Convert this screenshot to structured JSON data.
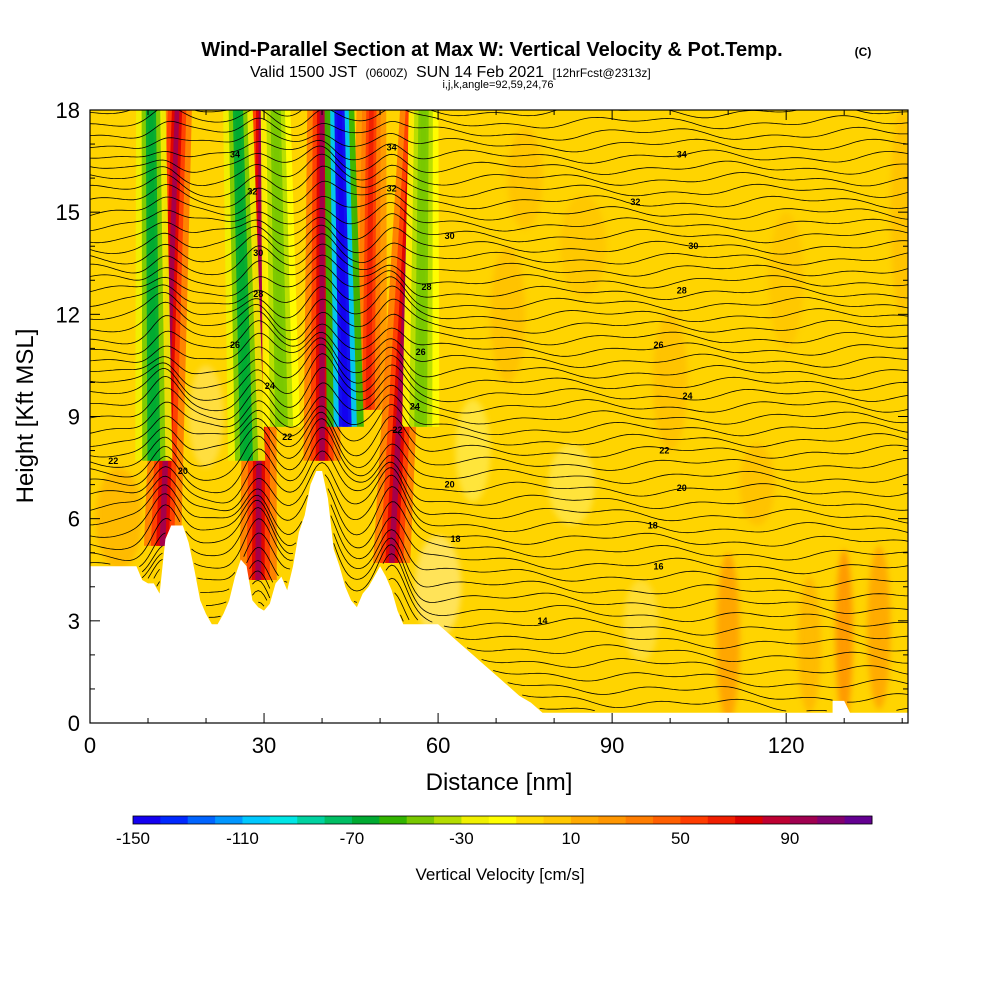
{
  "header": {
    "title_main": "Wind-Parallel Section at Max W: Vertical Velocity & Pot.Temp.",
    "title_tag": "(C)",
    "valid_prefix": "Valid 1500 JST",
    "valid_utc": "(0600Z)",
    "valid_date": "SUN 14 Feb 2021",
    "forecast": "[12hrFcst@2313z]",
    "grid_info": "i,j,k,angle=92,59,24,76"
  },
  "colors": {
    "background_field": "#ffd400",
    "terrain": "#ffffff",
    "contour_line": "#000000"
  },
  "chart_data": {
    "type": "heatmap",
    "xlabel": "Distance [nm]",
    "ylabel": "Height [Kft MSL]",
    "xlim": [
      0,
      141
    ],
    "ylim": [
      0,
      18
    ],
    "x_ticks": [
      0,
      30,
      60,
      90,
      120
    ],
    "y_ticks": [
      0,
      3,
      6,
      9,
      12,
      15,
      18
    ],
    "x_ticks_minor": [
      10,
      20,
      40,
      50,
      70,
      80,
      100,
      110,
      130,
      140
    ],
    "y_ticks_minor": [
      1,
      2,
      4,
      5,
      7,
      8,
      10,
      11,
      13,
      14,
      16,
      17
    ],
    "field": {
      "name": "Vertical Velocity",
      "units": "cm/s",
      "updraft_bands": [
        {
          "x_base": 12.5,
          "x_top": 15,
          "z_base": 5.5,
          "velocity": 90
        },
        {
          "x_base": 29,
          "x_top": 29.5,
          "z_base": 4.5,
          "velocity": 90
        },
        {
          "x_base": 40,
          "x_top": 40,
          "z_base": 8,
          "velocity": 90
        },
        {
          "x_base": 48,
          "x_top": 48.5,
          "z_base": 9.5,
          "velocity": 60
        },
        {
          "x_base": 52,
          "x_top": 56,
          "z_base": 5,
          "velocity": 90
        }
      ],
      "downdraft_bands": [
        {
          "x_base": 11,
          "x_top": 10.5,
          "z_base": 8,
          "velocity": -70
        },
        {
          "x_base": 27,
          "x_top": 25.5,
          "z_base": 8,
          "velocity": -70
        },
        {
          "x_base": 33,
          "x_top": 32,
          "z_base": 9,
          "velocity": -50
        },
        {
          "x_base": 44,
          "x_top": 43,
          "z_base": 9,
          "velocity": -150
        },
        {
          "x_base": 57,
          "x_top": 57.5,
          "z_base": 9,
          "velocity": -50
        }
      ]
    },
    "contours": {
      "name": "Potential Temperature",
      "units": "C",
      "start": 9,
      "interval": 0.5,
      "count": 54
    },
    "contour_labels": [
      {
        "text": "34",
        "x": 25,
        "z": 16.7
      },
      {
        "text": "32",
        "x": 28,
        "z": 15.6
      },
      {
        "text": "30",
        "x": 29,
        "z": 13.8
      },
      {
        "text": "28",
        "x": 29,
        "z": 12.6
      },
      {
        "text": "26",
        "x": 25,
        "z": 11.1
      },
      {
        "text": "24",
        "x": 31,
        "z": 9.9
      },
      {
        "text": "22",
        "x": 34,
        "z": 8.4
      },
      {
        "text": "22",
        "x": 4,
        "z": 7.7
      },
      {
        "text": "20",
        "x": 16,
        "z": 7.4
      },
      {
        "text": "34",
        "x": 52,
        "z": 16.9
      },
      {
        "text": "32",
        "x": 52,
        "z": 15.7
      },
      {
        "text": "30",
        "x": 62,
        "z": 14.3
      },
      {
        "text": "28",
        "x": 58,
        "z": 12.8
      },
      {
        "text": "26",
        "x": 57,
        "z": 10.9
      },
      {
        "text": "24",
        "x": 56,
        "z": 9.3
      },
      {
        "text": "22",
        "x": 53,
        "z": 8.6
      },
      {
        "text": "20",
        "x": 62,
        "z": 7.0
      },
      {
        "text": "18",
        "x": 63,
        "z": 5.4
      },
      {
        "text": "14",
        "x": 78,
        "z": 3.0
      },
      {
        "text": "34",
        "x": 102,
        "z": 16.7
      },
      {
        "text": "32",
        "x": 94,
        "z": 15.3
      },
      {
        "text": "30",
        "x": 104,
        "z": 14.0
      },
      {
        "text": "28",
        "x": 102,
        "z": 12.7
      },
      {
        "text": "26",
        "x": 98,
        "z": 11.1
      },
      {
        "text": "24",
        "x": 103,
        "z": 9.6
      },
      {
        "text": "22",
        "x": 99,
        "z": 8.0
      },
      {
        "text": "20",
        "x": 102,
        "z": 6.9
      },
      {
        "text": "18",
        "x": 97,
        "z": 5.8
      },
      {
        "text": "16",
        "x": 98,
        "z": 4.6
      }
    ],
    "terrain": [
      [
        0,
        4.6
      ],
      [
        8,
        4.6
      ],
      [
        9,
        4.2
      ],
      [
        10,
        4.1
      ],
      [
        11,
        4.1
      ],
      [
        12,
        3.8
      ],
      [
        13,
        5.4
      ],
      [
        14,
        5.8
      ],
      [
        16,
        5.8
      ],
      [
        17,
        5.3
      ],
      [
        18,
        4.5
      ],
      [
        19,
        3.6
      ],
      [
        20,
        3.2
      ],
      [
        21,
        2.9
      ],
      [
        22,
        2.9
      ],
      [
        23,
        3.2
      ],
      [
        24,
        3.6
      ],
      [
        25,
        4.3
      ],
      [
        26,
        4.8
      ],
      [
        27,
        4.6
      ],
      [
        28,
        3.6
      ],
      [
        29,
        3.4
      ],
      [
        30,
        3.3
      ],
      [
        31,
        3.5
      ],
      [
        32,
        4.1
      ],
      [
        33,
        4.3
      ],
      [
        34,
        3.9
      ],
      [
        35,
        4.6
      ],
      [
        36,
        5.6
      ],
      [
        37,
        6.1
      ],
      [
        38,
        7.0
      ],
      [
        39,
        7.4
      ],
      [
        40,
        7.4
      ],
      [
        41,
        6.6
      ],
      [
        42,
        5.1
      ],
      [
        43,
        4.6
      ],
      [
        44,
        4.0
      ],
      [
        45,
        3.6
      ],
      [
        46,
        3.4
      ],
      [
        47,
        3.8
      ],
      [
        48,
        4.0
      ],
      [
        49,
        4.3
      ],
      [
        50,
        4.6
      ],
      [
        51,
        4.3
      ],
      [
        52,
        3.9
      ],
      [
        53,
        3.3
      ],
      [
        54,
        2.9
      ],
      [
        60,
        2.9
      ],
      [
        62,
        2.6
      ],
      [
        64,
        2.3
      ],
      [
        66,
        2.0
      ],
      [
        68,
        1.7
      ],
      [
        70,
        1.4
      ],
      [
        72,
        1.1
      ],
      [
        74,
        0.8
      ],
      [
        76,
        0.6
      ],
      [
        78,
        0.3
      ],
      [
        128,
        0.3
      ],
      [
        128,
        0.65
      ],
      [
        130,
        0.65
      ],
      [
        131,
        0.3
      ],
      [
        140,
        0.3
      ],
      [
        141,
        0.3
      ]
    ],
    "colorbar": {
      "min": -150,
      "max": 120,
      "step": 10,
      "tick_labels": [
        "-150",
        "-110",
        "-70",
        "-30",
        "10",
        "50",
        "90"
      ],
      "tick_values": [
        -150,
        -110,
        -70,
        -30,
        10,
        50,
        90
      ],
      "label": "Vertical Velocity [cm/s]",
      "colors": [
        "#1400f0",
        "#0028ff",
        "#0064ff",
        "#0096ff",
        "#00c8ff",
        "#00e6e6",
        "#00d2a0",
        "#00be64",
        "#00aa32",
        "#32b400",
        "#78c800",
        "#b4dc00",
        "#f0f000",
        "#ffff00",
        "#ffdc00",
        "#ffc800",
        "#ffaa00",
        "#ff9600",
        "#ff7d00",
        "#ff5f00",
        "#ff3c00",
        "#f01e00",
        "#dc0000",
        "#be0032",
        "#a00050",
        "#82006e",
        "#640091"
      ]
    }
  }
}
